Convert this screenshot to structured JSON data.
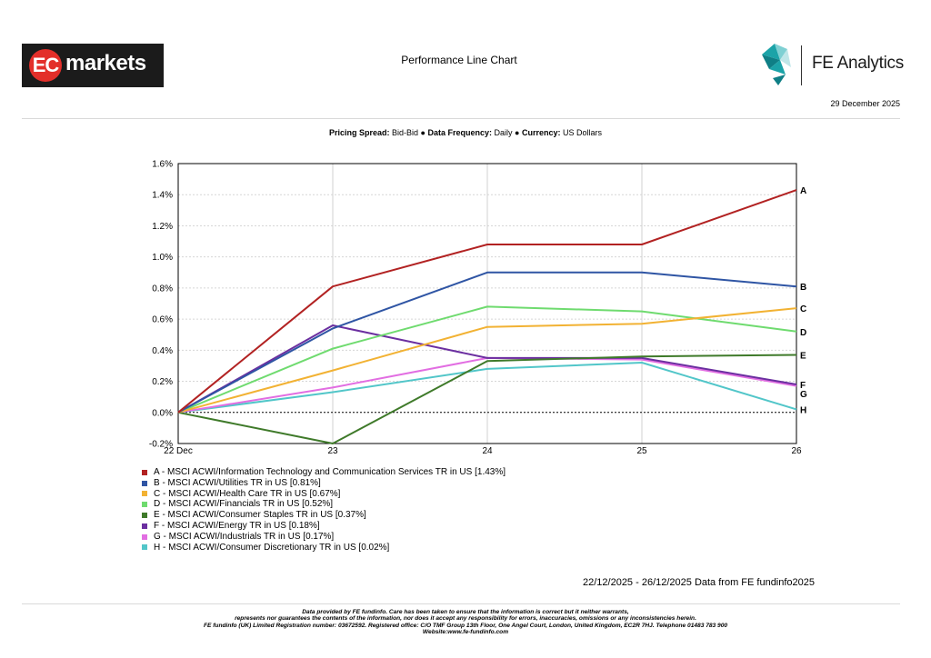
{
  "header": {
    "logo_ec_initials": "EC",
    "logo_ec_word": "markets",
    "title": "Performance Line Chart",
    "brand": "FE Analytics",
    "date": "29 December 2025"
  },
  "subtitle": {
    "pricing_label": "Pricing Spread:",
    "pricing_value": "Bid-Bid",
    "freq_label": "Data Frequency:",
    "freq_value": "Daily",
    "currency_label": "Currency:",
    "currency_value": "US Dollars",
    "bullet": "●"
  },
  "chart_data": {
    "type": "line",
    "x": [
      "22 Dec",
      "23",
      "24",
      "25",
      "26"
    ],
    "ylim": [
      -0.2,
      1.6
    ],
    "yticks": [
      "-0.2%",
      "0.0%",
      "0.2%",
      "0.4%",
      "0.6%",
      "0.8%",
      "1.0%",
      "1.2%",
      "1.4%",
      "1.6%"
    ],
    "ytick_values": [
      -0.2,
      0.0,
      0.2,
      0.4,
      0.6,
      0.8,
      1.0,
      1.2,
      1.4,
      1.6
    ],
    "grid": true,
    "series": [
      {
        "name": "A - MSCI ACWI/Information Technology and Communication Services TR in US [1.43%]",
        "tag": "A",
        "color": "#b22222",
        "values": [
          0.0,
          0.81,
          1.08,
          1.08,
          1.43
        ]
      },
      {
        "name": "B - MSCI ACWI/Utilities TR in US [0.81%]",
        "tag": "B",
        "color": "#2f55a4",
        "values": [
          0.0,
          0.54,
          0.9,
          0.9,
          0.81
        ]
      },
      {
        "name": "C - MSCI ACWI/Health Care TR in US [0.67%]",
        "tag": "C",
        "color": "#f2b233",
        "values": [
          0.0,
          0.27,
          0.55,
          0.57,
          0.67
        ]
      },
      {
        "name": "D - MSCI ACWI/Financials TR in US [0.52%]",
        "tag": "D",
        "color": "#6fdb6f",
        "values": [
          0.0,
          0.41,
          0.68,
          0.65,
          0.52
        ]
      },
      {
        "name": "E - MSCI ACWI/Consumer Staples TR in US [0.37%]",
        "tag": "E",
        "color": "#3f7a2a",
        "values": [
          0.0,
          -0.2,
          0.33,
          0.36,
          0.37
        ]
      },
      {
        "name": "F - MSCI ACWI/Energy TR in US [0.18%]",
        "tag": "F",
        "color": "#6b2fa0",
        "values": [
          0.0,
          0.56,
          0.35,
          0.35,
          0.18
        ]
      },
      {
        "name": "G - MSCI ACWI/Industrials TR in US [0.17%]",
        "tag": "G",
        "color": "#e26ee2",
        "values": [
          0.0,
          0.16,
          0.35,
          0.34,
          0.17
        ]
      },
      {
        "name": "H - MSCI ACWI/Consumer Discretionary TR in US [0.02%]",
        "tag": "H",
        "color": "#52c6c9",
        "values": [
          0.0,
          0.13,
          0.28,
          0.32,
          0.02
        ]
      }
    ]
  },
  "footer": {
    "range": "22/12/2025 - 26/12/2025 Data from FE fundinfo2025",
    "line1": "Data provided by FE fundinfo. Care has been taken to ensure that the information is correct but it neither warrants,",
    "line2": "represents nor guarantees the contents of the information, nor does it accept any responsibility for errors, inaccuracies, omissions or any inconsistencies herein.",
    "line3": "FE fundinfo (UK) Limited Registration number: 03672592. Registered office: C/O TMF Group 13th Floor, One Angel Court, London, United Kingdom, EC2R 7HJ. Telephone 01483 783 900",
    "line4": "Website:www.fe-fundinfo.com"
  }
}
